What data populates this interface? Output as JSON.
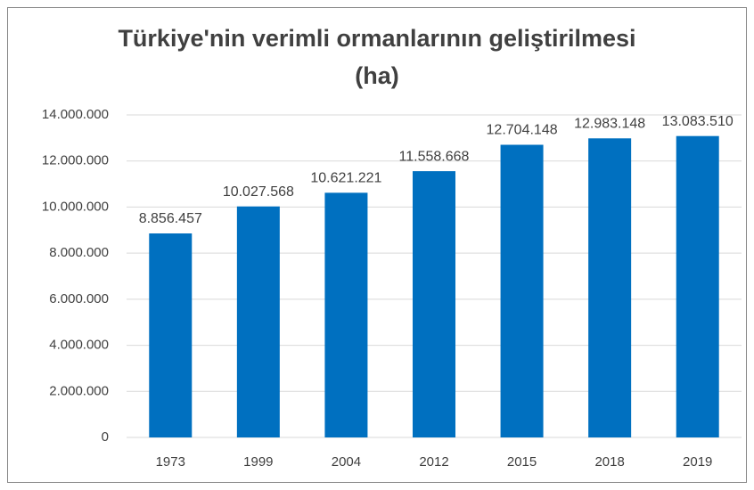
{
  "chart_data": {
    "type": "bar",
    "title": "Türkiye'nin verimli ormanlarının geliştirilmesi (ha)",
    "categories": [
      "1973",
      "1999",
      "2004",
      "2012",
      "2015",
      "2018",
      "2019"
    ],
    "values": [
      8856457,
      10027568,
      10621221,
      11558668,
      12704148,
      12983148,
      13083510
    ],
    "value_labels": [
      "8.856.457",
      "10.027.568",
      "10.621.221",
      "11.558.668",
      "12.704.148",
      "12.983.148",
      "13.083.510"
    ],
    "color": "#0070c0",
    "ylim": [
      0,
      14000000
    ],
    "yticks": [
      0,
      {
        "value": 2000000,
        "label": "2.000.000"
      },
      {
        "value": 4000000,
        "label": "4.000.000"
      },
      {
        "value": 6000000,
        "label": "6.000.000"
      },
      {
        "value": 8000000,
        "label": "8.000.000"
      },
      {
        "value": 10000000,
        "label": "10.000.000"
      },
      {
        "value": 12000000,
        "label": "12.000.000"
      },
      {
        "value": 14000000,
        "label": "14.000.000"
      }
    ],
    "grid": true
  }
}
